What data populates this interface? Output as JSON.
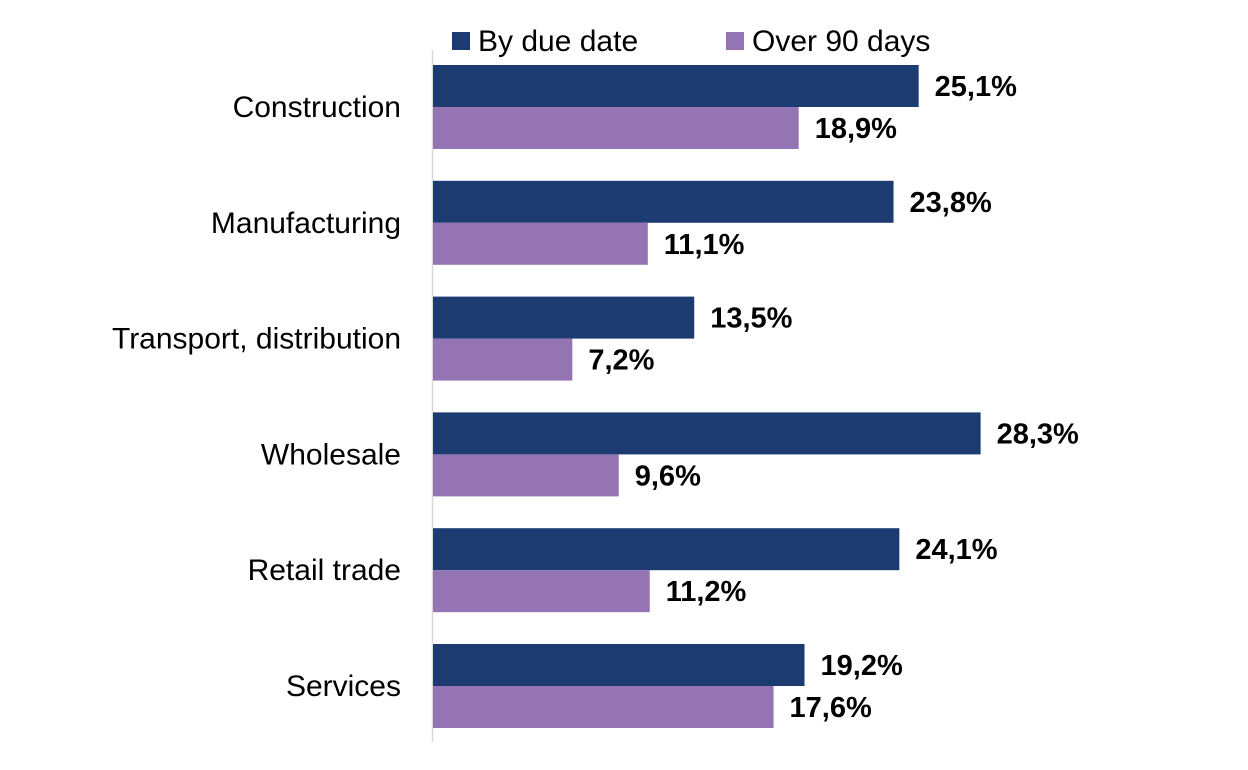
{
  "chart_data": {
    "type": "bar",
    "orientation": "horizontal",
    "categories": [
      "Construction",
      "Manufacturing",
      "Transport, distribution",
      "Wholesale",
      "Retail trade",
      "Services"
    ],
    "series": [
      {
        "name": "By due date",
        "color": "#1c3b70",
        "values": [
          25.1,
          23.8,
          13.5,
          28.3,
          24.1,
          19.2
        ],
        "labels": [
          "25,1%",
          "23,8%",
          "13,5%",
          "28,3%",
          "24,1%",
          "19,2%"
        ]
      },
      {
        "name": "Over 90 days",
        "color": "#9474b3",
        "values": [
          18.9,
          11.1,
          7.2,
          9.6,
          11.2,
          17.6
        ],
        "labels": [
          "18,9%",
          "11,1%",
          "7,2%",
          "9,6%",
          "11,2%",
          "17,6%"
        ]
      }
    ],
    "xlim": [
      0,
      30
    ],
    "legend_position": "top",
    "grid": false,
    "axis_color": "#d9d9d9"
  }
}
